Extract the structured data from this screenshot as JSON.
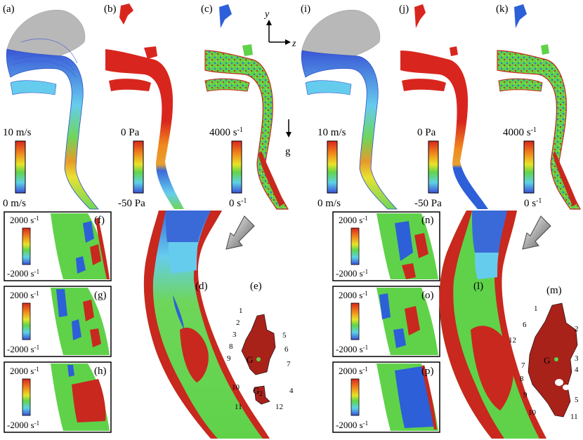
{
  "panels": {
    "a": "(a)",
    "b": "(b)",
    "c": "(c)",
    "d": "(d)",
    "e": "(e)",
    "f": "(f)",
    "g": "(g)",
    "h": "(h)",
    "i": "(i)",
    "j": "(j)",
    "k": "(k)",
    "l": "(l)",
    "m": "(m)",
    "n": "(n)",
    "o": "(o)",
    "p": "(p)"
  },
  "axes": {
    "y": "y",
    "z": "z",
    "g": "g"
  },
  "scales": {
    "velocity": {
      "max": "10 m/s",
      "min": "0 m/s"
    },
    "pressure": {
      "max": "0 Pa",
      "min": "-50 Pa"
    },
    "vorticity": {
      "max": "4000 s",
      "min": "0 s",
      "exp": "-1"
    },
    "inset": {
      "max": "2000 s",
      "min": "-2000 s",
      "exp": "-1"
    }
  },
  "centroid": {
    "G": "G",
    "G2": "G",
    "G2_sub": "2"
  },
  "numbers_e": [
    "1",
    "2",
    "3",
    "4",
    "5",
    "6",
    "7",
    "8",
    "9",
    "10",
    "11",
    "12"
  ],
  "numbers_m": [
    "1",
    "2",
    "3",
    "4",
    "5",
    "6",
    "7",
    "8",
    "9",
    "10",
    "11",
    "12"
  ],
  "colors": {
    "red": "#c8281e",
    "orange": "#f08a1e",
    "yellow": "#e8e02a",
    "green": "#5fd24a",
    "cyan": "#66d6e8",
    "blue": "#2c5fd8",
    "gray": "#b8b8b8",
    "dark_red": "#a8221a"
  }
}
